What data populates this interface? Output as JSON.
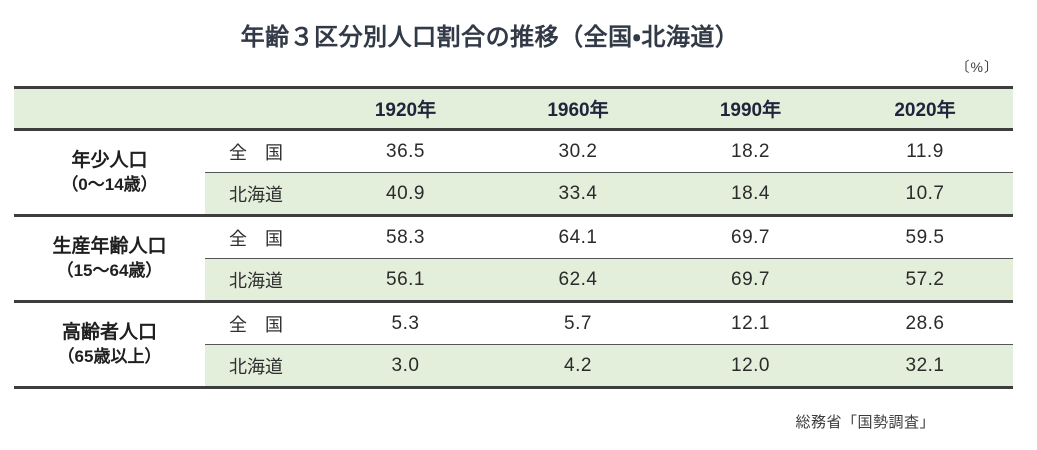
{
  "title": "年齢３区分別人口割合の推移（全国・北海道）",
  "unit_label": "〔%〕",
  "source": "総務省「国勢調査」",
  "colors": {
    "header_bg": "#e3eedb",
    "alt_row_bg": "#e3eedb",
    "border_dark": "#3d3d3d",
    "border_thin": "#555555",
    "title_text": "#333a47",
    "header_text": "#20253b",
    "value_text": "#2b2b2b"
  },
  "chart_data": {
    "type": "table",
    "title": "年齢３区分別人口割合の推移（全国・北海道）",
    "unit": "%",
    "columns": [
      "1920年",
      "1960年",
      "1990年",
      "2020年"
    ],
    "groups": [
      {
        "label": "年少人口",
        "range": "（0〜14歳）",
        "rows": [
          {
            "region": "全　国",
            "values": [
              "36.5",
              "30.2",
              "18.2",
              "11.9"
            ]
          },
          {
            "region": "北海道",
            "values": [
              "40.9",
              "33.4",
              "18.4",
              "10.7"
            ]
          }
        ]
      },
      {
        "label": "生産年齢人口",
        "range": "（15〜64歳）",
        "rows": [
          {
            "region": "全　国",
            "values": [
              "58.3",
              "64.1",
              "69.7",
              "59.5"
            ]
          },
          {
            "region": "北海道",
            "values": [
              "56.1",
              "62.4",
              "69.7",
              "57.2"
            ]
          }
        ]
      },
      {
        "label": "高齢者人口",
        "range": "（65歳以上）",
        "rows": [
          {
            "region": "全　国",
            "values": [
              "5.3",
              "5.7",
              "12.1",
              "28.6"
            ]
          },
          {
            "region": "北海道",
            "values": [
              "3.0",
              "4.2",
              "12.0",
              "32.1"
            ]
          }
        ]
      }
    ],
    "source": "総務省「国勢調査」"
  }
}
